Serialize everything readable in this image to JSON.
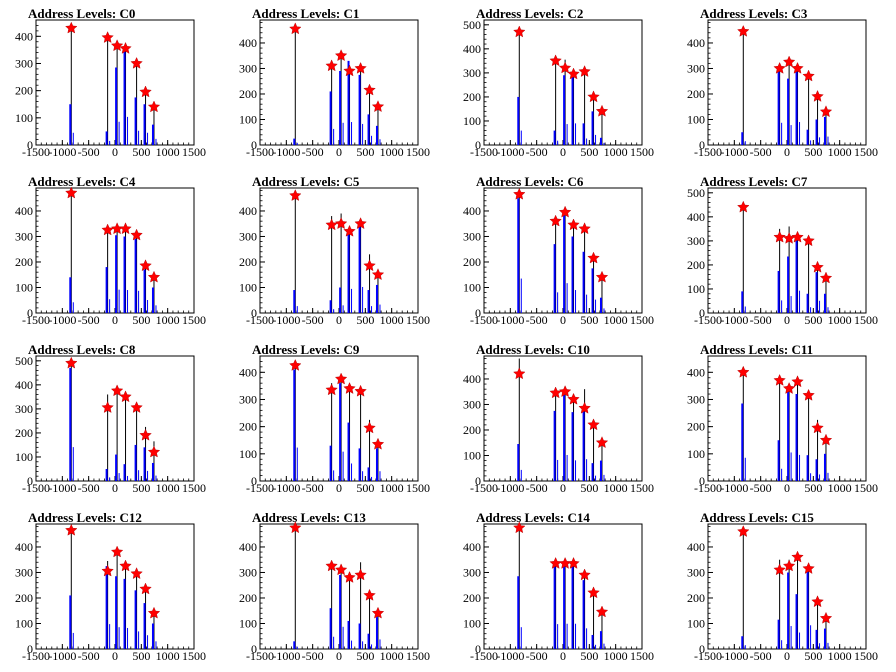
{
  "colors": {
    "histogram": "#0000ff",
    "spike": "#000000",
    "marker": "#ff0000",
    "axis": "#000000"
  },
  "chart_data": [
    {
      "title": "Address Levels: C0",
      "type": "bar",
      "xlim": [
        -1500,
        1500
      ],
      "xticks": [
        "-1500",
        "-1000",
        "-500",
        "0",
        "500",
        "1000",
        "1500"
      ],
      "ylim": [
        0,
        460
      ],
      "yticks": [
        "0",
        "100",
        "200",
        "300",
        "400"
      ],
      "peaks": {
        "x": [
          -830,
          -140,
          40,
          200,
          410,
          580,
          740
        ],
        "y": [
          430,
          395,
          365,
          355,
          300,
          195,
          140
        ]
      },
      "blue": [
        150,
        50,
        285,
        345,
        175,
        150,
        75
      ],
      "black": [
        430,
        395,
        365,
        355,
        300,
        210,
        150
      ]
    },
    {
      "title": "Address Levels: C1",
      "type": "bar",
      "xlim": [
        -1500,
        1500
      ],
      "xticks": [
        "-1500",
        "-1000",
        "-500",
        "0",
        "500",
        "1000",
        "1500"
      ],
      "ylim": [
        0,
        490
      ],
      "yticks": [
        "0",
        "100",
        "200",
        "300",
        "400"
      ],
      "peaks": {
        "x": [
          -830,
          -140,
          40,
          200,
          410,
          580,
          740
        ],
        "y": [
          455,
          310,
          350,
          290,
          300,
          215,
          150
        ]
      },
      "blue": [
        25,
        210,
        290,
        330,
        275,
        120,
        75
      ],
      "black": [
        455,
        330,
        360,
        300,
        310,
        220,
        150
      ]
    },
    {
      "title": "Address Levels: C2",
      "type": "bar",
      "xlim": [
        -1500,
        1500
      ],
      "xticks": [
        "-1500",
        "-1000",
        "-500",
        "0",
        "500",
        "1000",
        "1500"
      ],
      "ylim": [
        0,
        520
      ],
      "yticks": [
        "0",
        "100",
        "200",
        "300",
        "400",
        "500"
      ],
      "peaks": {
        "x": [
          -830,
          -140,
          40,
          200,
          410,
          580,
          740
        ],
        "y": [
          470,
          350,
          320,
          295,
          305,
          200,
          140
        ]
      },
      "blue": [
        200,
        60,
        290,
        300,
        90,
        140,
        30
      ],
      "black": [
        470,
        360,
        355,
        310,
        310,
        205,
        150
      ]
    },
    {
      "title": "Address Levels: C3",
      "type": "bar",
      "xlim": [
        -1500,
        1500
      ],
      "xticks": [
        "-1500",
        "-1000",
        "-500",
        "0",
        "500",
        "1000",
        "1500"
      ],
      "ylim": [
        0,
        490
      ],
      "yticks": [
        "0",
        "100",
        "200",
        "300",
        "400"
      ],
      "peaks": {
        "x": [
          -830,
          -140,
          40,
          200,
          410,
          580,
          740
        ],
        "y": [
          445,
          300,
          325,
          300,
          270,
          190,
          130
        ]
      },
      "blue": [
        50,
        290,
        260,
        310,
        60,
        100,
        110
      ],
      "black": [
        445,
        300,
        325,
        300,
        275,
        195,
        140
      ]
    },
    {
      "title": "Address Levels: C4",
      "type": "bar",
      "xlim": [
        -1500,
        1500
      ],
      "xticks": [
        "-1500",
        "-1000",
        "-500",
        "0",
        "500",
        "1000",
        "1500"
      ],
      "ylim": [
        0,
        490
      ],
      "yticks": [
        "0",
        "100",
        "200",
        "300",
        "400"
      ],
      "peaks": {
        "x": [
          -830,
          -140,
          40,
          200,
          410,
          580,
          740
        ],
        "y": [
          470,
          325,
          330,
          330,
          305,
          185,
          140
        ]
      },
      "blue": [
        140,
        180,
        305,
        300,
        290,
        170,
        100
      ],
      "black": [
        470,
        340,
        340,
        340,
        310,
        195,
        150
      ]
    },
    {
      "title": "Address Levels: C5",
      "type": "bar",
      "xlim": [
        -1500,
        1500
      ],
      "xticks": [
        "-1500",
        "-1000",
        "-500",
        "0",
        "500",
        "1000",
        "1500"
      ],
      "ylim": [
        0,
        490
      ],
      "yticks": [
        "0",
        "100",
        "200",
        "300",
        "400"
      ],
      "peaks": {
        "x": [
          -830,
          -140,
          40,
          200,
          410,
          580,
          740
        ],
        "y": [
          460,
          345,
          350,
          320,
          350,
          185,
          150
        ]
      },
      "blue": [
        90,
        50,
        100,
        315,
        340,
        90,
        110
      ],
      "black": [
        460,
        380,
        390,
        330,
        350,
        230,
        150
      ]
    },
    {
      "title": "Address Levels: C6",
      "type": "bar",
      "xlim": [
        -1500,
        1500
      ],
      "xticks": [
        "-1500",
        "-1000",
        "-500",
        "0",
        "500",
        "1000",
        "1500"
      ],
      "ylim": [
        0,
        490
      ],
      "yticks": [
        "0",
        "100",
        "200",
        "300",
        "400"
      ],
      "peaks": {
        "x": [
          -830,
          -140,
          40,
          200,
          410,
          580,
          740
        ],
        "y": [
          465,
          360,
          395,
          345,
          330,
          215,
          140
        ]
      },
      "blue": [
        450,
        270,
        390,
        300,
        240,
        175,
        60
      ],
      "black": [
        465,
        375,
        400,
        345,
        330,
        215,
        145
      ]
    },
    {
      "title": "Address Levels: C7",
      "type": "bar",
      "xlim": [
        -1500,
        1500
      ],
      "xticks": [
        "-1500",
        "-1000",
        "-500",
        "0",
        "500",
        "1000",
        "1500"
      ],
      "ylim": [
        0,
        520
      ],
      "yticks": [
        "0",
        "100",
        "200",
        "300",
        "400",
        "500"
      ],
      "peaks": {
        "x": [
          -830,
          -140,
          40,
          200,
          410,
          580,
          740
        ],
        "y": [
          440,
          315,
          310,
          315,
          300,
          190,
          145
        ]
      },
      "blue": [
        90,
        175,
        235,
        310,
        80,
        170,
        80
      ],
      "black": [
        440,
        350,
        360,
        320,
        305,
        190,
        150
      ]
    },
    {
      "title": "Address Levels: C8",
      "type": "bar",
      "xlim": [
        -1500,
        1500
      ],
      "xticks": [
        "-1500",
        "-1000",
        "-500",
        "0",
        "500",
        "1000",
        "1500"
      ],
      "ylim": [
        0,
        520
      ],
      "yticks": [
        "0",
        "100",
        "200",
        "300",
        "400",
        "500"
      ],
      "peaks": {
        "x": [
          -830,
          -140,
          40,
          200,
          410,
          580,
          740
        ],
        "y": [
          490,
          305,
          375,
          350,
          305,
          190,
          120
        ]
      },
      "blue": [
        470,
        50,
        110,
        70,
        150,
        140,
        75
      ],
      "black": [
        490,
        360,
        380,
        350,
        305,
        225,
        165
      ]
    },
    {
      "title": "Address Levels: C9",
      "type": "bar",
      "xlim": [
        -1500,
        1500
      ],
      "xticks": [
        "-1500",
        "-1000",
        "-500",
        "0",
        "500",
        "1000",
        "1500"
      ],
      "ylim": [
        0,
        460
      ],
      "yticks": [
        "0",
        "100",
        "200",
        "300",
        "400"
      ],
      "peaks": {
        "x": [
          -830,
          -140,
          40,
          200,
          410,
          580,
          740
        ],
        "y": [
          425,
          335,
          375,
          340,
          330,
          195,
          135
        ]
      },
      "blue": [
        410,
        130,
        360,
        215,
        120,
        50,
        120
      ],
      "black": [
        430,
        360,
        380,
        340,
        330,
        225,
        155
      ]
    },
    {
      "title": "Address Levels: C10",
      "type": "bar",
      "xlim": [
        -1500,
        1500
      ],
      "xticks": [
        "-1500",
        "-1000",
        "-500",
        "0",
        "500",
        "1000",
        "1500"
      ],
      "ylim": [
        0,
        490
      ],
      "yticks": [
        "0",
        "100",
        "200",
        "300",
        "400"
      ],
      "peaks": {
        "x": [
          -830,
          -140,
          40,
          200,
          410,
          580,
          740
        ],
        "y": [
          420,
          345,
          350,
          320,
          285,
          220,
          150
        ]
      },
      "blue": [
        145,
        275,
        340,
        270,
        285,
        70,
        80
      ],
      "black": [
        480,
        350,
        370,
        340,
        360,
        230,
        160
      ]
    },
    {
      "title": "Address Levels: C11",
      "type": "bar",
      "xlim": [
        -1500,
        1500
      ],
      "xticks": [
        "-1500",
        "-1000",
        "-500",
        "0",
        "500",
        "1000",
        "1500"
      ],
      "ylim": [
        0,
        460
      ],
      "yticks": [
        "0",
        "100",
        "200",
        "300",
        "400"
      ],
      "peaks": {
        "x": [
          -830,
          -140,
          40,
          200,
          410,
          580,
          740
        ],
        "y": [
          400,
          370,
          340,
          365,
          315,
          195,
          150
        ]
      },
      "blue": [
        285,
        150,
        350,
        320,
        95,
        80,
        100
      ],
      "black": [
        420,
        380,
        350,
        375,
        320,
        225,
        160
      ]
    },
    {
      "title": "Address Levels: C12",
      "type": "bar",
      "xlim": [
        -1500,
        1500
      ],
      "xticks": [
        "-1500",
        "-1000",
        "-500",
        "0",
        "500",
        "1000",
        "1500"
      ],
      "ylim": [
        0,
        490
      ],
      "yticks": [
        "0",
        "100",
        "200",
        "300",
        "400"
      ],
      "peaks": {
        "x": [
          -830,
          -140,
          40,
          200,
          410,
          580,
          740
        ],
        "y": [
          465,
          305,
          380,
          325,
          295,
          235,
          140
        ]
      },
      "blue": [
        210,
        325,
        285,
        275,
        230,
        180,
        100
      ],
      "black": [
        465,
        345,
        380,
        325,
        300,
        235,
        145
      ]
    },
    {
      "title": "Address Levels: C13",
      "type": "bar",
      "xlim": [
        -1500,
        1500
      ],
      "xticks": [
        "-1500",
        "-1000",
        "-500",
        "0",
        "500",
        "1000",
        "1500"
      ],
      "ylim": [
        0,
        490
      ],
      "yticks": [
        "0",
        "100",
        "200",
        "300",
        "400"
      ],
      "peaks": {
        "x": [
          -830,
          -140,
          40,
          200,
          410,
          580,
          740
        ],
        "y": [
          475,
          325,
          310,
          280,
          290,
          210,
          140
        ]
      },
      "blue": [
        30,
        160,
        290,
        110,
        100,
        60,
        125
      ],
      "black": [
        475,
        330,
        330,
        300,
        340,
        210,
        160
      ]
    },
    {
      "title": "Address Levels: C14",
      "type": "bar",
      "xlim": [
        -1500,
        1500
      ],
      "xticks": [
        "-1500",
        "-1000",
        "-500",
        "0",
        "500",
        "1000",
        "1500"
      ],
      "ylim": [
        0,
        490
      ],
      "yticks": [
        "0",
        "100",
        "200",
        "300",
        "400"
      ],
      "peaks": {
        "x": [
          -830,
          -140,
          40,
          200,
          410,
          580,
          740
        ],
        "y": [
          475,
          335,
          335,
          335,
          290,
          220,
          145
        ]
      },
      "blue": [
        285,
        325,
        330,
        330,
        270,
        55,
        70
      ],
      "black": [
        475,
        340,
        340,
        340,
        295,
        230,
        150
      ]
    },
    {
      "title": "Address Levels: C15",
      "type": "bar",
      "xlim": [
        -1500,
        1500
      ],
      "xticks": [
        "-1500",
        "-1000",
        "-500",
        "0",
        "500",
        "1000",
        "1500"
      ],
      "ylim": [
        0,
        490
      ],
      "yticks": [
        "0",
        "100",
        "200",
        "300",
        "400"
      ],
      "peaks": {
        "x": [
          -830,
          -140,
          40,
          200,
          410,
          580,
          740
        ],
        "y": [
          460,
          310,
          325,
          360,
          315,
          185,
          120
        ]
      },
      "blue": [
        50,
        115,
        300,
        215,
        310,
        75,
        80
      ],
      "black": [
        460,
        350,
        350,
        370,
        330,
        195,
        135
      ]
    }
  ]
}
